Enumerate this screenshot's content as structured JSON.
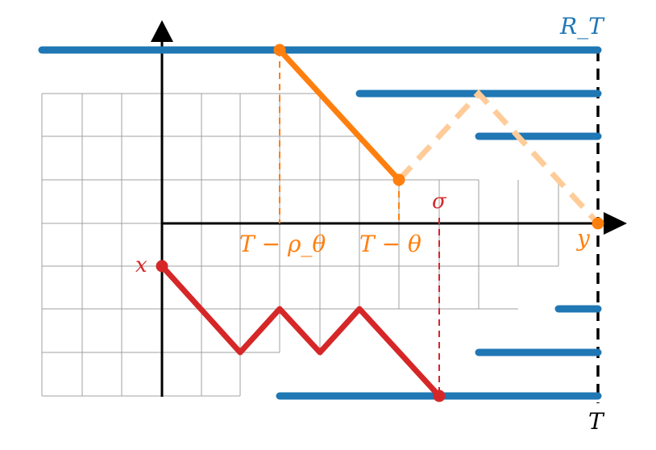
{
  "labels": {
    "region": "R_T",
    "terminal_time": "T",
    "start_point": "x",
    "end_point": "y",
    "hitting_time": "σ",
    "time_rho": "T − ρ_θ",
    "time_theta": "T − θ"
  },
  "colors": {
    "grid": "#a0a0a0",
    "axis": "#000000",
    "barrier": "#1f77b4",
    "forward_path": "#d62728",
    "backward_path": "#ff7f0e",
    "backward_path_faded": "#ffcc99",
    "terminal_line": "#000000"
  }
}
